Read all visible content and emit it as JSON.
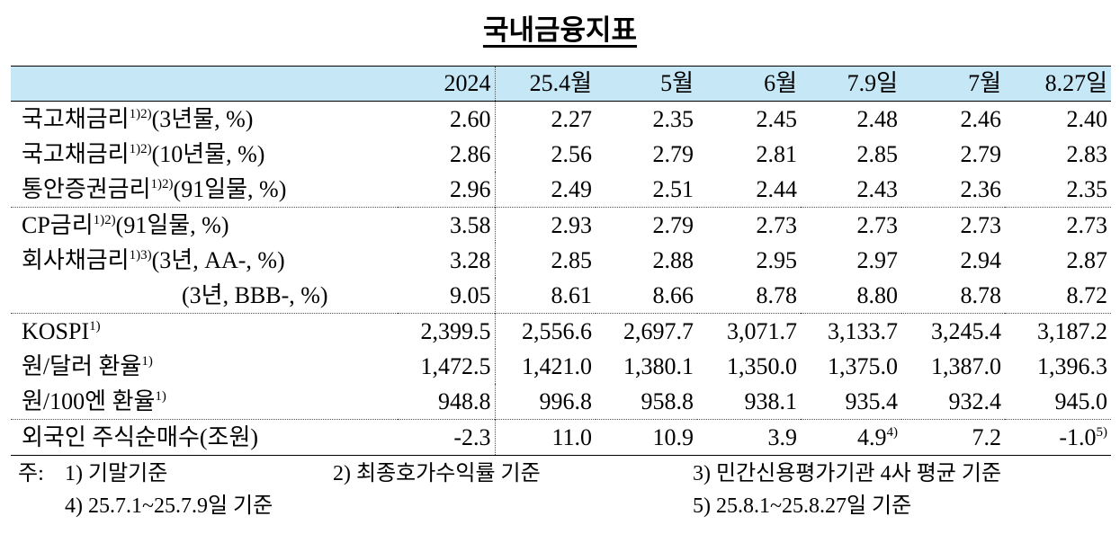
{
  "title": "국내금융지표",
  "table": {
    "header": [
      "2024",
      "25.4월",
      "5월",
      "6월",
      "7.9일",
      "7월",
      "8.27일"
    ],
    "groups": [
      {
        "rows": [
          {
            "name": "국고채금리",
            "sup": "1)2)",
            "rest": "(3년물, %)",
            "cells": [
              "2.60",
              "2.27",
              "2.35",
              "2.45",
              "2.48",
              "2.46",
              "2.40"
            ]
          },
          {
            "name": "국고채금리",
            "sup": "1)2)",
            "rest": "(10년물, %)",
            "cells": [
              "2.86",
              "2.56",
              "2.79",
              "2.81",
              "2.85",
              "2.79",
              "2.83"
            ]
          },
          {
            "name": "통안증권금리",
            "sup": "1)2)",
            "rest": "(91일물, %)",
            "cells": [
              "2.96",
              "2.49",
              "2.51",
              "2.44",
              "2.43",
              "2.36",
              "2.35"
            ]
          }
        ]
      },
      {
        "rows": [
          {
            "name": "CP금리",
            "sup": "1)2)",
            "rest": "(91일물, %)",
            "cells": [
              "3.58",
              "2.93",
              "2.79",
              "2.73",
              "2.73",
              "2.73",
              "2.73"
            ]
          },
          {
            "name": "회사채금리",
            "sup": "1)3)",
            "rest": "(3년, AA-, %)",
            "cells": [
              "3.28",
              "2.85",
              "2.88",
              "2.95",
              "2.97",
              "2.94",
              "2.87"
            ]
          },
          {
            "rest": "(3년, BBB-, %)",
            "cells": [
              "9.05",
              "8.61",
              "8.66",
              "8.78",
              "8.80",
              "8.78",
              "8.72"
            ]
          }
        ]
      },
      {
        "rows": [
          {
            "name": "KOSPI",
            "sup": "1)",
            "cells": [
              "2,399.5",
              "2,556.6",
              "2,697.7",
              "3,071.7",
              "3,133.7",
              "3,245.4",
              "3,187.2"
            ]
          },
          {
            "name": "원/달러 환율",
            "sup": "1)",
            "cells": [
              "1,472.5",
              "1,421.0",
              "1,380.1",
              "1,350.0",
              "1,375.0",
              "1,387.0",
              "1,396.3"
            ]
          },
          {
            "name": "원/100엔 환율",
            "sup": "1)",
            "cells": [
              "948.8",
              "996.8",
              "958.8",
              "938.1",
              "935.4",
              "932.4",
              "945.0"
            ]
          }
        ]
      },
      {
        "rows": [
          {
            "name": "외국인 주식순매수",
            "rest": "(조원)",
            "cells": [
              "-2.3",
              "11.0",
              "10.9",
              "3.9",
              {
                "value": "4.9",
                "sup": "4)"
              },
              "7.2",
              {
                "value": "-1.0",
                "sup": "5)"
              }
            ]
          }
        ]
      }
    ]
  },
  "notes": {
    "label": "주:",
    "items": [
      "1) 기말기준",
      "2) 최종호가수익률 기준",
      "3) 민간신용평가기관 4사 평균 기준",
      "4) 25.7.1~25.7.9일 기준",
      "5) 25.8.1~25.8.27일 기준"
    ]
  }
}
